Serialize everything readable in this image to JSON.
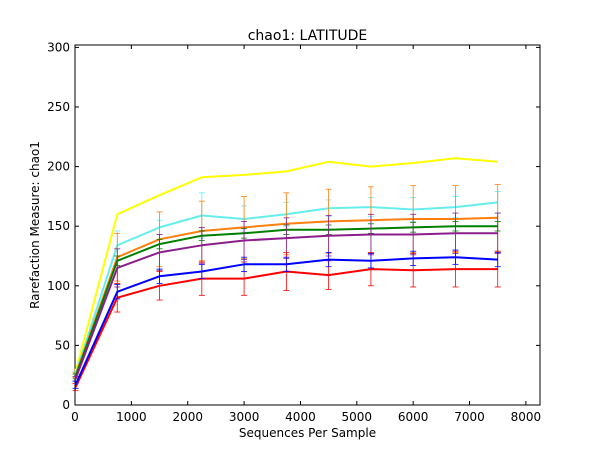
{
  "chart_data": {
    "type": "line",
    "title": "chao1: LATITUDE",
    "xlabel": "Sequences Per Sample",
    "ylabel": "Rarefaction Measure: chao1",
    "xlim": [
      0,
      8250
    ],
    "ylim": [
      0,
      302
    ],
    "xticks": [
      0,
      1000,
      2000,
      3000,
      4000,
      5000,
      6000,
      7000,
      8000
    ],
    "yticks": [
      0,
      50,
      100,
      150,
      200,
      250,
      300
    ],
    "x": [
      10,
      750,
      1500,
      2250,
      3000,
      3750,
      4500,
      5250,
      6000,
      6750,
      7500
    ],
    "grid": false,
    "series": [
      {
        "color": "#ffff00",
        "values": [
          28,
          160,
          176,
          191,
          193,
          196,
          204,
          200,
          203,
          207,
          204
        ],
        "errors": [
          2,
          0,
          0,
          0,
          0,
          0,
          0,
          0,
          0,
          0,
          0
        ]
      },
      {
        "color": "#66eeee",
        "values": [
          26,
          134,
          149,
          159,
          156,
          160,
          165,
          166,
          164,
          166,
          170
        ],
        "errors": [
          2,
          12,
          6,
          19,
          11,
          10,
          7,
          8,
          10,
          9,
          9
        ]
      },
      {
        "color": "#ff7f0e",
        "values": [
          25,
          124,
          139,
          146,
          149,
          152,
          154,
          155,
          156,
          156,
          157
        ],
        "errors": [
          2,
          20,
          23,
          25,
          26,
          26,
          27,
          28,
          28,
          28,
          28
        ]
      },
      {
        "color": "#008000",
        "values": [
          24,
          121,
          135,
          142,
          144,
          147,
          147,
          148,
          149,
          150,
          150
        ],
        "errors": [
          2,
          4,
          4,
          4,
          4,
          4,
          4,
          4,
          4,
          4,
          4
        ]
      },
      {
        "color": "#8b1e8b",
        "values": [
          22,
          115,
          128,
          134,
          138,
          140,
          142,
          143,
          143,
          144,
          144
        ],
        "errors": [
          2,
          16,
          15,
          15,
          16,
          17,
          17,
          17,
          17,
          17,
          17
        ]
      },
      {
        "color": "#ff0000",
        "values": [
          15,
          90,
          100,
          106,
          106,
          112,
          109,
          114,
          113,
          114,
          114
        ],
        "errors": [
          3,
          12,
          12,
          14,
          14,
          16,
          12,
          14,
          14,
          15,
          15
        ]
      },
      {
        "color": "#0000ff",
        "values": [
          17,
          95,
          108,
          112,
          118,
          118,
          122,
          121,
          123,
          124,
          122
        ],
        "errors": [
          3,
          6,
          6,
          6,
          6,
          6,
          6,
          6,
          6,
          6,
          6
        ]
      }
    ]
  }
}
